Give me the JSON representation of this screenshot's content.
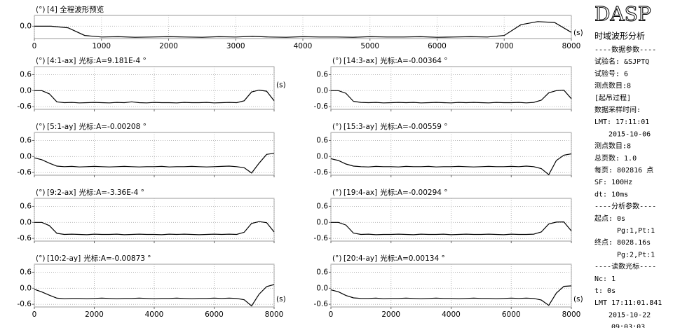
{
  "chart_data": [
    {
      "type": "line",
      "y_unit": "(°)",
      "title": "[4] 全程波形预览",
      "x_unit": "(s)",
      "color": "#000000",
      "x": [
        0,
        250,
        500,
        750,
        1000,
        1250,
        1500,
        1750,
        2000,
        2250,
        2500,
        2750,
        3000,
        3250,
        3500,
        3750,
        4000,
        4250,
        4500,
        4750,
        5000,
        5250,
        5500,
        5750,
        6000,
        6250,
        6500,
        6750,
        7000,
        7250,
        7500,
        7750,
        8000
      ],
      "values": [
        0,
        0,
        -0.05,
        -0.3,
        -0.35,
        -0.34,
        -0.36,
        -0.35,
        -0.34,
        -0.35,
        -0.36,
        -0.34,
        -0.35,
        -0.33,
        -0.35,
        -0.36,
        -0.34,
        -0.35,
        -0.35,
        -0.36,
        -0.34,
        -0.35,
        -0.35,
        -0.34,
        -0.36,
        -0.35,
        -0.34,
        -0.35,
        -0.3,
        0.05,
        0.15,
        0.12,
        -0.2
      ],
      "xlim": [
        0,
        8000
      ],
      "xticks": [
        0,
        1000,
        2000,
        3000,
        4000,
        5000,
        6000,
        7000,
        8000
      ],
      "ylim": [
        -0.4,
        0.35
      ],
      "yticks": [
        {
          "value": 0,
          "label": "0.0"
        }
      ],
      "grid": true
    },
    {
      "type": "line",
      "y_unit": "(°)",
      "title": "[4:1-ax]",
      "cursor": "光标:A=9.181E-4 °",
      "x_unit": "(s)",
      "color": "#000000",
      "x": [
        0,
        250,
        500,
        750,
        1000,
        1250,
        1500,
        1750,
        2000,
        2250,
        2500,
        2750,
        3000,
        3250,
        3500,
        3750,
        4000,
        4250,
        4500,
        4750,
        5000,
        5250,
        5500,
        5750,
        6000,
        6250,
        6500,
        6750,
        7000,
        7250,
        7500,
        7750,
        8000
      ],
      "values": [
        0,
        0,
        -0.12,
        -0.42,
        -0.45,
        -0.44,
        -0.46,
        -0.45,
        -0.44,
        -0.45,
        -0.46,
        -0.44,
        -0.45,
        -0.42,
        -0.45,
        -0.46,
        -0.44,
        -0.45,
        -0.45,
        -0.46,
        -0.44,
        -0.45,
        -0.45,
        -0.44,
        -0.46,
        -0.45,
        -0.44,
        -0.45,
        -0.38,
        -0.05,
        0.02,
        -0.02,
        -0.38
      ],
      "xlim": [
        0,
        8000
      ],
      "xticks": [
        0,
        2000,
        4000,
        6000,
        8000
      ],
      "ylim": [
        -0.7,
        0.9
      ],
      "yticks": [
        0.6,
        {
          "value": 0,
          "label": "0.0"
        },
        -0.6
      ],
      "grid": true
    },
    {
      "type": "line",
      "y_unit": "(°)",
      "title": "[14:3-ax]",
      "cursor": "光标:A=-0.00364 °",
      "color": "#000000",
      "x": [
        0,
        250,
        500,
        750,
        1000,
        1250,
        1500,
        1750,
        2000,
        2250,
        2500,
        2750,
        3000,
        3250,
        3500,
        3750,
        4000,
        4250,
        4500,
        4750,
        5000,
        5250,
        5500,
        5750,
        6000,
        6250,
        6500,
        6750,
        7000,
        7250,
        7500,
        7750,
        8000
      ],
      "values": [
        0,
        0,
        -0.1,
        -0.4,
        -0.44,
        -0.45,
        -0.44,
        -0.46,
        -0.45,
        -0.44,
        -0.45,
        -0.44,
        -0.46,
        -0.45,
        -0.44,
        -0.45,
        -0.46,
        -0.44,
        -0.45,
        -0.44,
        -0.45,
        -0.46,
        -0.44,
        -0.45,
        -0.45,
        -0.44,
        -0.46,
        -0.44,
        -0.36,
        -0.08,
        0.0,
        0.02,
        -0.3
      ],
      "xlim": [
        0,
        8000
      ],
      "xticks": [
        0,
        2000,
        4000,
        6000,
        8000
      ],
      "ylim": [
        -0.7,
        0.9
      ],
      "yticks": [
        0.6,
        {
          "value": 0,
          "label": "0.0"
        },
        -0.6
      ],
      "grid": true
    },
    {
      "type": "line",
      "y_unit": "(°)",
      "title": "[5:1-ay]",
      "cursor": "光标:A=-0.00208 °",
      "color": "#000000",
      "x": [
        0,
        250,
        500,
        750,
        1000,
        1250,
        1500,
        1750,
        2000,
        2250,
        2500,
        2750,
        3000,
        3250,
        3500,
        3750,
        4000,
        4250,
        4500,
        4750,
        5000,
        5250,
        5500,
        5750,
        6000,
        6250,
        6500,
        6750,
        7000,
        7250,
        7500,
        7750,
        8000
      ],
      "values": [
        -0.05,
        -0.12,
        -0.25,
        -0.36,
        -0.38,
        -0.37,
        -0.39,
        -0.38,
        -0.37,
        -0.38,
        -0.39,
        -0.38,
        -0.37,
        -0.38,
        -0.39,
        -0.38,
        -0.38,
        -0.37,
        -0.39,
        -0.38,
        -0.38,
        -0.37,
        -0.38,
        -0.39,
        -0.38,
        -0.37,
        -0.36,
        -0.38,
        -0.42,
        -0.62,
        -0.25,
        0.08,
        0.12
      ],
      "xlim": [
        0,
        8000
      ],
      "xticks": [
        0,
        2000,
        4000,
        6000,
        8000
      ],
      "ylim": [
        -0.7,
        0.9
      ],
      "yticks": [
        0.6,
        {
          "value": 0,
          "label": "0.0"
        },
        -0.6
      ],
      "grid": true
    },
    {
      "type": "line",
      "y_unit": "(°)",
      "title": "[15:3-ay]",
      "cursor": "光标:A=-0.00559 °",
      "color": "#000000",
      "x": [
        0,
        250,
        500,
        750,
        1000,
        1250,
        1500,
        1750,
        2000,
        2250,
        2500,
        2750,
        3000,
        3250,
        3500,
        3750,
        4000,
        4250,
        4500,
        4750,
        5000,
        5250,
        5500,
        5750,
        6000,
        6250,
        6500,
        6750,
        7000,
        7250,
        7500,
        7750,
        8000
      ],
      "values": [
        -0.08,
        -0.15,
        -0.28,
        -0.36,
        -0.38,
        -0.39,
        -0.37,
        -0.38,
        -0.38,
        -0.39,
        -0.37,
        -0.38,
        -0.38,
        -0.37,
        -0.39,
        -0.38,
        -0.38,
        -0.37,
        -0.38,
        -0.39,
        -0.38,
        -0.37,
        -0.38,
        -0.38,
        -0.37,
        -0.38,
        -0.36,
        -0.38,
        -0.45,
        -0.68,
        -0.15,
        0.05,
        0.1
      ],
      "xlim": [
        0,
        8000
      ],
      "xticks": [
        0,
        2000,
        4000,
        6000,
        8000
      ],
      "ylim": [
        -0.7,
        0.9
      ],
      "yticks": [
        0.6,
        {
          "value": 0,
          "label": "0.0"
        },
        -0.6
      ],
      "grid": true
    },
    {
      "type": "line",
      "y_unit": "(°)",
      "title": "[9:2-ax]",
      "cursor": "光标:A=-3.36E-4 °",
      "color": "#000000",
      "x": [
        0,
        250,
        500,
        750,
        1000,
        1250,
        1500,
        1750,
        2000,
        2250,
        2500,
        2750,
        3000,
        3250,
        3500,
        3750,
        4000,
        4250,
        4500,
        4750,
        5000,
        5250,
        5500,
        5750,
        6000,
        6250,
        6500,
        6750,
        7000,
        7250,
        7500,
        7750,
        8000
      ],
      "values": [
        0,
        0,
        -0.12,
        -0.41,
        -0.45,
        -0.44,
        -0.45,
        -0.46,
        -0.44,
        -0.45,
        -0.45,
        -0.44,
        -0.46,
        -0.45,
        -0.44,
        -0.45,
        -0.45,
        -0.46,
        -0.44,
        -0.45,
        -0.44,
        -0.45,
        -0.46,
        -0.45,
        -0.44,
        -0.45,
        -0.44,
        -0.45,
        -0.37,
        -0.04,
        0.03,
        -0.01,
        -0.36
      ],
      "xlim": [
        0,
        8000
      ],
      "xticks": [
        0,
        2000,
        4000,
        6000,
        8000
      ],
      "ylim": [
        -0.7,
        0.9
      ],
      "yticks": [
        0.6,
        {
          "value": 0,
          "label": "0.0"
        },
        -0.6
      ],
      "grid": true
    },
    {
      "type": "line",
      "y_unit": "(°)",
      "title": "[19:4-ax]",
      "cursor": "光标:A=-0.00294 °",
      "color": "#000000",
      "x": [
        0,
        250,
        500,
        750,
        1000,
        1250,
        1500,
        1750,
        2000,
        2250,
        2500,
        2750,
        3000,
        3250,
        3500,
        3750,
        4000,
        4250,
        4500,
        4750,
        5000,
        5250,
        5500,
        5750,
        6000,
        6250,
        6500,
        6750,
        7000,
        7250,
        7500,
        7750,
        8000
      ],
      "values": [
        0,
        0,
        -0.1,
        -0.4,
        -0.45,
        -0.44,
        -0.46,
        -0.45,
        -0.45,
        -0.44,
        -0.45,
        -0.46,
        -0.44,
        -0.45,
        -0.45,
        -0.44,
        -0.46,
        -0.45,
        -0.44,
        -0.45,
        -0.45,
        -0.44,
        -0.45,
        -0.46,
        -0.44,
        -0.45,
        -0.45,
        -0.44,
        -0.36,
        -0.06,
        0.01,
        0.02,
        -0.32
      ],
      "xlim": [
        0,
        8000
      ],
      "xticks": [
        0,
        2000,
        4000,
        6000,
        8000
      ],
      "ylim": [
        -0.7,
        0.9
      ],
      "yticks": [
        0.6,
        {
          "value": 0,
          "label": "0.0"
        },
        -0.6
      ],
      "grid": true
    },
    {
      "type": "line",
      "y_unit": "(°)",
      "title": "[10:2-ay]",
      "cursor": "光标:A=-0.00873 °",
      "x_unit": "(s)",
      "color": "#000000",
      "x": [
        0,
        250,
        500,
        750,
        1000,
        1250,
        1500,
        1750,
        2000,
        2250,
        2500,
        2750,
        3000,
        3250,
        3500,
        3750,
        4000,
        4250,
        4500,
        4750,
        5000,
        5250,
        5500,
        5750,
        6000,
        6250,
        6500,
        6750,
        7000,
        7250,
        7500,
        7750,
        8000
      ],
      "values": [
        -0.04,
        -0.14,
        -0.26,
        -0.37,
        -0.39,
        -0.38,
        -0.38,
        -0.39,
        -0.38,
        -0.37,
        -0.38,
        -0.39,
        -0.38,
        -0.38,
        -0.37,
        -0.38,
        -0.39,
        -0.38,
        -0.38,
        -0.37,
        -0.38,
        -0.39,
        -0.38,
        -0.38,
        -0.37,
        -0.38,
        -0.37,
        -0.38,
        -0.43,
        -0.66,
        -0.22,
        0.06,
        0.14
      ],
      "xlim": [
        0,
        8000
      ],
      "xticks": [
        0,
        2000,
        4000,
        6000,
        8000
      ],
      "ylim": [
        -0.7,
        0.9
      ],
      "yticks": [
        0.6,
        {
          "value": 0,
          "label": "0.0"
        },
        -0.6
      ],
      "grid": true
    },
    {
      "type": "line",
      "y_unit": "(°)",
      "title": "[20:4-ay]",
      "cursor": "光标:A=0.00134 °",
      "x_unit": "(s)",
      "color": "#000000",
      "x": [
        0,
        250,
        500,
        750,
        1000,
        1250,
        1500,
        1750,
        2000,
        2250,
        2500,
        2750,
        3000,
        3250,
        3500,
        3750,
        4000,
        4250,
        4500,
        4750,
        5000,
        5250,
        5500,
        5750,
        6000,
        6250,
        6500,
        6750,
        7000,
        7250,
        7500,
        7750,
        8000
      ],
      "values": [
        -0.06,
        -0.13,
        -0.27,
        -0.36,
        -0.38,
        -0.38,
        -0.37,
        -0.39,
        -0.38,
        -0.38,
        -0.37,
        -0.38,
        -0.39,
        -0.38,
        -0.37,
        -0.38,
        -0.38,
        -0.39,
        -0.38,
        -0.37,
        -0.38,
        -0.38,
        -0.39,
        -0.38,
        -0.37,
        -0.38,
        -0.37,
        -0.38,
        -0.44,
        -0.64,
        -0.18,
        0.07,
        0.09
      ],
      "xlim": [
        0,
        8000
      ],
      "xticks": [
        0,
        2000,
        4000,
        6000,
        8000
      ],
      "ylim": [
        -0.7,
        0.9
      ],
      "yticks": [
        0.6,
        {
          "value": 0,
          "label": "0.0"
        },
        -0.6
      ],
      "grid": true
    }
  ],
  "panel": {
    "logo": "DASP",
    "title": "时域波形分析",
    "lines": [
      "----数据参数----",
      "试验名: &SJPTQ",
      "试验号: 6",
      "测点数目:8",
      "[起吊过程]",
      "数据采样时间:",
      "LMT: 17:11:01",
      "2015-10-06",
      "测点数目:8",
      "总页数: 1.0",
      "每页: 802816 点",
      "SF: 100Hz",
      "dt: 10ms",
      "----分析参数----",
      "起点: 0s",
      "Pg:1,Pt:1",
      "终点: 8028.16s",
      "Pg:2,Pt:1",
      "----读数光标----",
      "Nc: 1",
      "t: 0s",
      "LMT 17:11:01.841",
      "2015-10-22",
      "09:03:03"
    ]
  }
}
